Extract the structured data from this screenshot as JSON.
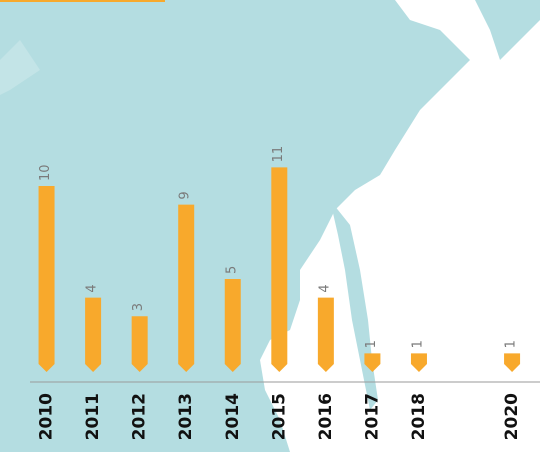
{
  "chart_data": {
    "type": "bar",
    "x": [
      2010,
      2011,
      2012,
      2013,
      2014,
      2015,
      2016,
      2017,
      2018,
      2020
    ],
    "values": [
      10,
      4,
      3,
      9,
      5,
      11,
      4,
      1,
      1,
      1
    ],
    "color": "#f8a92c",
    "xlim": [
      2009,
      2020.6
    ],
    "ylim": [
      0,
      20
    ]
  }
}
